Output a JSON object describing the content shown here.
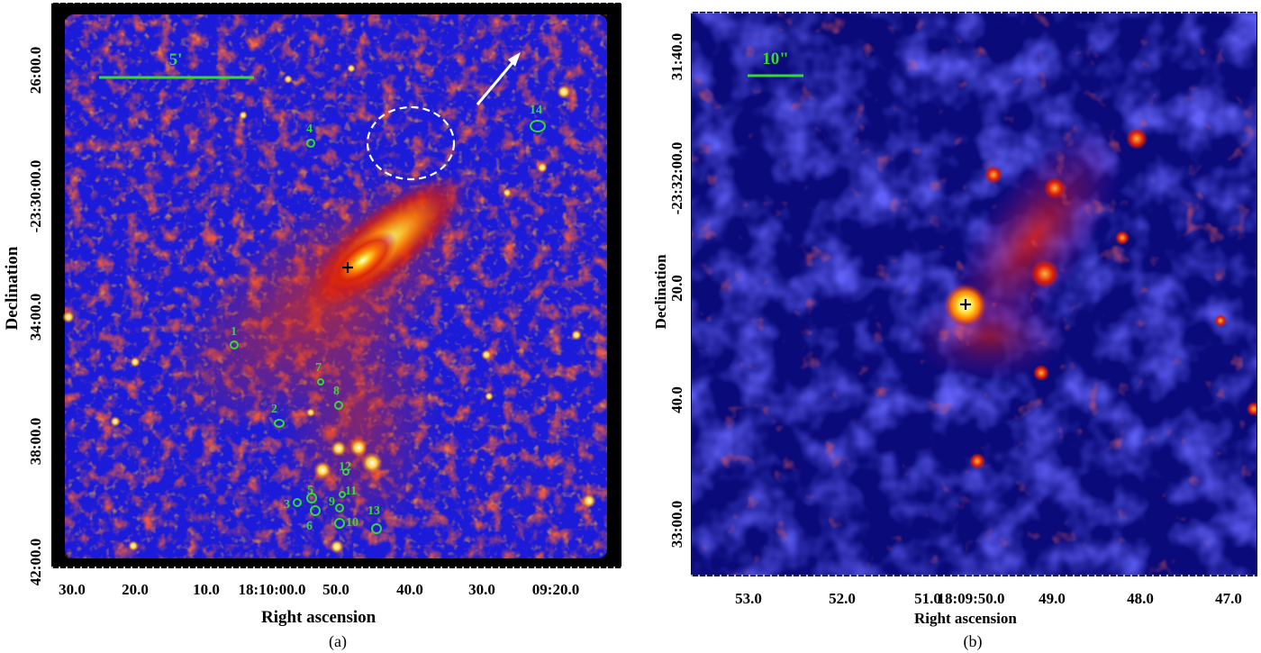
{
  "panel_a": {
    "caption": "(a)",
    "xlabel": "Right ascension",
    "ylabel": "Declination",
    "x_ticks": [
      "30.0",
      "20.0",
      "10.0",
      "18:10:00.0",
      "50.0",
      "40.0",
      "30.0",
      "09:20.0"
    ],
    "y_ticks": [
      "42:00.0",
      "38:00.0",
      "34:00.0",
      "-23:30:00.0",
      "26:00.0"
    ],
    "scale_bar_label": "5'",
    "sources": [
      "1",
      "2",
      "3",
      "4",
      "5",
      "6",
      "7",
      "8",
      "9",
      "10",
      "11",
      "12",
      "13",
      "14"
    ]
  },
  "panel_b": {
    "caption": "(b)",
    "xlabel": "Right ascension",
    "ylabel": "Declination",
    "x_ticks": [
      "53.0",
      "52.0",
      "51.0",
      "18:09:50.0",
      "49.0",
      "48.0",
      "47.0"
    ],
    "y_ticks": [
      "33:00.0",
      "40.0",
      "20.0",
      "-23:32:00.0",
      "31:40.0"
    ],
    "scale_bar_label": "10\""
  },
  "colors": {
    "background_blue": "#1b1bd9",
    "deep_blue": "#0a0a7a",
    "red": "#d81a0a",
    "orange": "#ff7a00",
    "yellow": "#ffe23a",
    "green_marker": "#36d836",
    "white": "#ffffff"
  }
}
